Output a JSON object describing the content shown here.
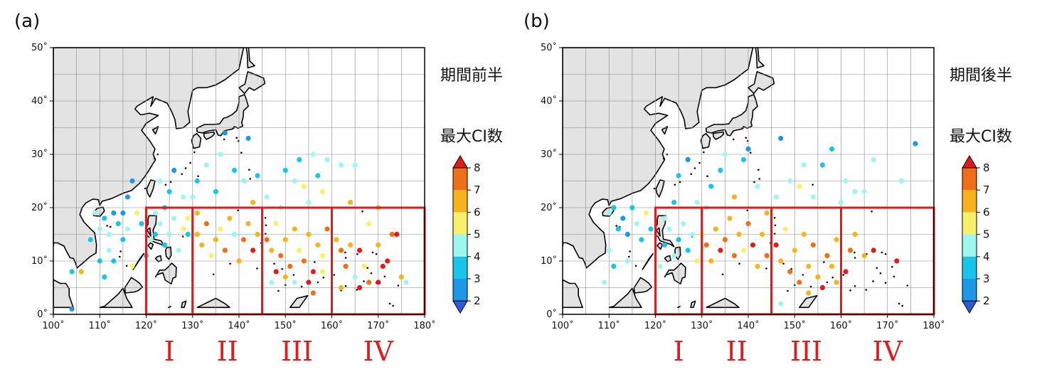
{
  "panels": [
    {
      "label": "(a)",
      "period_label": "期間前半",
      "points": [
        [
          104,
          8,
          3
        ],
        [
          106,
          8,
          6
        ],
        [
          104,
          1,
          2
        ],
        [
          108,
          14,
          3
        ],
        [
          109,
          19,
          4
        ],
        [
          110,
          16,
          4
        ],
        [
          111,
          18,
          3
        ],
        [
          112,
          15,
          4
        ],
        [
          113,
          19,
          2
        ],
        [
          114,
          17,
          3
        ],
        [
          115,
          19,
          2
        ],
        [
          116,
          16,
          4
        ],
        [
          116,
          22,
          2
        ],
        [
          117,
          25,
          2
        ],
        [
          118,
          19,
          5
        ],
        [
          119,
          17,
          3
        ],
        [
          115,
          14,
          3
        ],
        [
          112,
          12,
          4
        ],
        [
          113,
          10,
          3
        ],
        [
          117,
          9,
          5
        ],
        [
          110,
          10,
          3
        ],
        [
          111,
          7,
          3
        ],
        [
          120,
          11,
          3
        ],
        [
          121,
          14,
          4
        ],
        [
          122,
          15,
          3
        ],
        [
          123,
          17,
          4
        ],
        [
          124,
          13,
          3
        ],
        [
          125,
          15,
          4
        ],
        [
          126,
          18,
          4
        ],
        [
          127,
          12,
          4
        ],
        [
          128,
          16,
          5
        ],
        [
          122,
          19,
          4
        ],
        [
          124,
          20,
          3
        ],
        [
          123,
          25,
          4
        ],
        [
          125,
          23,
          3
        ],
        [
          126,
          27,
          2
        ],
        [
          128,
          22,
          4
        ],
        [
          129,
          15,
          3
        ],
        [
          129,
          18,
          5
        ],
        [
          131,
          15,
          6
        ],
        [
          131,
          19,
          6
        ],
        [
          132,
          13,
          6
        ],
        [
          133,
          17,
          7
        ],
        [
          134,
          11,
          5
        ],
        [
          135,
          14,
          6
        ],
        [
          136,
          16,
          5
        ],
        [
          137,
          12,
          7
        ],
        [
          138,
          18,
          6
        ],
        [
          139,
          15,
          4
        ],
        [
          140,
          10,
          6
        ],
        [
          141,
          14,
          7
        ],
        [
          142,
          17,
          6
        ],
        [
          143,
          12,
          8
        ],
        [
          144,
          15,
          6
        ],
        [
          130,
          22,
          4
        ],
        [
          131,
          25,
          3
        ],
        [
          133,
          28,
          4
        ],
        [
          135,
          23,
          3
        ],
        [
          136,
          30,
          4
        ],
        [
          137,
          34,
          2
        ],
        [
          139,
          27,
          3
        ],
        [
          141,
          25,
          4
        ],
        [
          142,
          33,
          2
        ],
        [
          143,
          21,
          6
        ],
        [
          144,
          26,
          3
        ],
        [
          146,
          14,
          7
        ],
        [
          147,
          12,
          6
        ],
        [
          148,
          17,
          5
        ],
        [
          149,
          11,
          7
        ],
        [
          150,
          14,
          6
        ],
        [
          151,
          9,
          7
        ],
        [
          152,
          16,
          6
        ],
        [
          153,
          12,
          5
        ],
        [
          154,
          10,
          7
        ],
        [
          155,
          15,
          6
        ],
        [
          156,
          8,
          8
        ],
        [
          157,
          13,
          6
        ],
        [
          158,
          11,
          5
        ],
        [
          159,
          16,
          7
        ],
        [
          147,
          6,
          4
        ],
        [
          148,
          8,
          8
        ],
        [
          150,
          7,
          6
        ],
        [
          152,
          6,
          4
        ],
        [
          155,
          6,
          8
        ],
        [
          156,
          4,
          7
        ],
        [
          158,
          8,
          5
        ],
        [
          146,
          22,
          4
        ],
        [
          149,
          20,
          4
        ],
        [
          150,
          27,
          3
        ],
        [
          152,
          25,
          4
        ],
        [
          153,
          29,
          3
        ],
        [
          154,
          24,
          5
        ],
        [
          155,
          21,
          4
        ],
        [
          156,
          30,
          4
        ],
        [
          157,
          26,
          3
        ],
        [
          158,
          23,
          5
        ],
        [
          159,
          29,
          4
        ],
        [
          161,
          14,
          6
        ],
        [
          162,
          12,
          7
        ],
        [
          163,
          9,
          7
        ],
        [
          164,
          13,
          6
        ],
        [
          165,
          7,
          4
        ],
        [
          166,
          12,
          8
        ],
        [
          167,
          9,
          5
        ],
        [
          168,
          6,
          7
        ],
        [
          170,
          13,
          6
        ],
        [
          171,
          9,
          8
        ],
        [
          172,
          10,
          8
        ],
        [
          173,
          15,
          7
        ],
        [
          174,
          15,
          8
        ],
        [
          175,
          7,
          6
        ],
        [
          176,
          6,
          4
        ],
        [
          162,
          28,
          4
        ],
        [
          165,
          28,
          4
        ],
        [
          164,
          21,
          6
        ],
        [
          168,
          17,
          5
        ],
        [
          170,
          20,
          6
        ],
        [
          162,
          5,
          6
        ],
        [
          166,
          5,
          8
        ],
        [
          170,
          6,
          8
        ]
      ]
    },
    {
      "label": "(b)",
      "period_label": "期間後半",
      "points": [
        [
          109,
          6,
          4
        ],
        [
          110,
          12,
          4
        ],
        [
          111,
          20,
          3
        ],
        [
          112,
          16,
          3
        ],
        [
          113,
          18,
          2
        ],
        [
          114,
          15,
          2
        ],
        [
          115,
          20,
          3
        ],
        [
          116,
          17,
          4
        ],
        [
          117,
          14,
          3
        ],
        [
          118,
          19,
          5
        ],
        [
          119,
          16,
          3
        ],
        [
          110,
          19,
          4
        ],
        [
          111,
          9,
          3
        ],
        [
          114,
          10,
          4
        ],
        [
          121,
          9,
          4
        ],
        [
          122,
          13,
          3
        ],
        [
          123,
          16,
          4
        ],
        [
          124,
          11,
          4
        ],
        [
          125,
          14,
          3
        ],
        [
          126,
          17,
          4
        ],
        [
          127,
          12,
          3
        ],
        [
          128,
          15,
          4
        ],
        [
          129,
          10,
          5
        ],
        [
          122,
          18,
          4
        ],
        [
          124,
          21,
          3
        ],
        [
          125,
          26,
          3
        ],
        [
          127,
          29,
          2
        ],
        [
          129,
          21,
          4
        ],
        [
          130,
          15,
          5
        ],
        [
          131,
          13,
          7
        ],
        [
          132,
          10,
          6
        ],
        [
          133,
          16,
          6
        ],
        [
          134,
          12,
          8
        ],
        [
          135,
          14,
          7
        ],
        [
          136,
          18,
          6
        ],
        [
          137,
          11,
          7
        ],
        [
          138,
          15,
          6
        ],
        [
          139,
          12,
          5
        ],
        [
          140,
          17,
          7
        ],
        [
          141,
          13,
          8
        ],
        [
          142,
          9,
          6
        ],
        [
          143,
          15,
          6
        ],
        [
          144,
          11,
          7
        ],
        [
          131,
          20,
          4
        ],
        [
          132,
          24,
          3
        ],
        [
          134,
          27,
          3
        ],
        [
          135,
          30,
          4
        ],
        [
          137,
          22,
          6
        ],
        [
          139,
          29,
          3
        ],
        [
          140,
          31,
          2
        ],
        [
          142,
          24,
          4
        ],
        [
          144,
          19,
          6
        ],
        [
          146,
          13,
          8
        ],
        [
          147,
          10,
          6
        ],
        [
          148,
          16,
          5
        ],
        [
          149,
          8,
          7
        ],
        [
          150,
          12,
          6
        ],
        [
          151,
          6,
          7
        ],
        [
          152,
          15,
          6
        ],
        [
          153,
          9,
          6
        ],
        [
          154,
          13,
          7
        ],
        [
          155,
          7,
          6
        ],
        [
          156,
          5,
          8
        ],
        [
          157,
          11,
          7
        ],
        [
          158,
          9,
          6
        ],
        [
          159,
          14,
          6
        ],
        [
          146,
          22,
          4
        ],
        [
          147,
          33,
          2
        ],
        [
          149,
          25,
          4
        ],
        [
          151,
          24,
          5
        ],
        [
          152,
          28,
          4
        ],
        [
          154,
          22,
          4
        ],
        [
          156,
          28,
          3
        ],
        [
          158,
          31,
          3
        ],
        [
          160,
          21,
          4
        ],
        [
          161,
          8,
          8
        ],
        [
          162,
          12,
          7
        ],
        [
          163,
          15,
          6
        ],
        [
          165,
          11,
          6
        ],
        [
          167,
          12,
          8
        ],
        [
          161,
          25,
          4
        ],
        [
          163,
          23,
          4
        ],
        [
          165,
          23,
          4
        ],
        [
          167,
          29,
          4
        ],
        [
          172,
          10,
          8
        ],
        [
          173,
          25,
          4
        ],
        [
          176,
          32,
          2
        ],
        [
          147,
          2,
          4
        ],
        [
          153,
          4,
          6
        ],
        [
          159,
          6,
          6
        ]
      ]
    }
  ],
  "axes": {
    "x_ticks": [
      "100˚",
      "110˚",
      "120˚",
      "130˚",
      "140˚",
      "150˚",
      "160˚",
      "170˚",
      "180˚"
    ],
    "y_ticks": [
      "0˚",
      "10˚",
      "20˚",
      "30˚",
      "40˚",
      "50˚"
    ]
  },
  "colorbar": {
    "title": "最大CI数",
    "ticks": [
      "2",
      "3",
      "4",
      "5",
      "6",
      "7",
      "8"
    ]
  },
  "regions": [
    "I",
    "II",
    "III",
    "IV"
  ],
  "colors": {
    "land": "#e3e3e3",
    "region_box": "#e01b1b",
    "scale": [
      "#2f5bd6",
      "#1d98e6",
      "#18c4e8",
      "#9ef6f0",
      "#f8f06a",
      "#f7b21d",
      "#f06e17",
      "#e01b1b"
    ]
  }
}
